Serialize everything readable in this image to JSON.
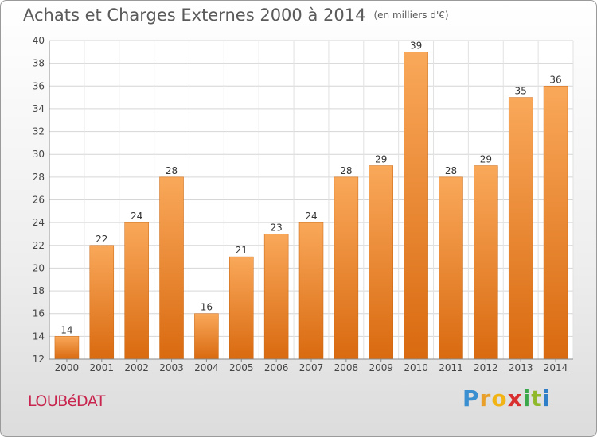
{
  "chart_data": {
    "type": "bar",
    "title": "Achats et Charges Externes 2000 à 2014",
    "subtitle": "(en milliers d'€)",
    "categories": [
      "2000",
      "2001",
      "2002",
      "2003",
      "2004",
      "2005",
      "2006",
      "2007",
      "2008",
      "2009",
      "2010",
      "2011",
      "2012",
      "2013",
      "2014"
    ],
    "values": [
      14,
      22,
      24,
      28,
      16,
      21,
      23,
      24,
      28,
      29,
      39,
      28,
      29,
      35,
      36
    ],
    "ylim": [
      12,
      40
    ],
    "yticks": [
      12,
      14,
      16,
      18,
      20,
      22,
      24,
      26,
      28,
      30,
      32,
      34,
      36,
      38,
      40
    ],
    "grid": true,
    "bar_color": "#f08c2a"
  },
  "commune": "LOUBéDAT",
  "logo": {
    "letters": [
      "P",
      "r",
      "o",
      "x",
      "i",
      "t",
      "i"
    ],
    "colors": [
      "#3a8fd0",
      "#e8a02a",
      "#f2b315",
      "#d92f2f",
      "#3aa84a",
      "#8fb82a",
      "#2f7fc8"
    ]
  }
}
